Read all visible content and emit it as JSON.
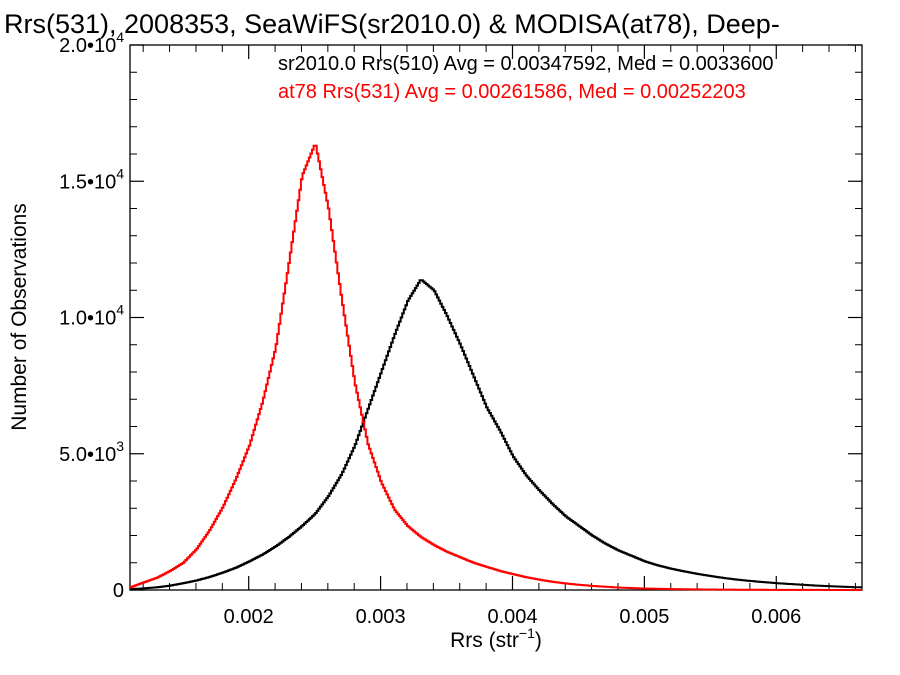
{
  "chart_data": {
    "type": "line",
    "title": "Rrs(531), 2008353, SeaWiFS(sr2010.0) & MODISA(at78), Deep-",
    "xlabel": "Rrs (str",
    "xlabel_sup": "−1",
    "xlabel_close": ")",
    "ylabel": "Number of Observations",
    "xlim": [
      0.0011,
      0.00665
    ],
    "ylim": [
      0,
      20000
    ],
    "grid": false,
    "x_ticks": [
      {
        "value": 0.002,
        "label": "0.002"
      },
      {
        "value": 0.003,
        "label": "0.003"
      },
      {
        "value": 0.004,
        "label": "0.004"
      },
      {
        "value": 0.005,
        "label": "0.005"
      },
      {
        "value": 0.006,
        "label": "0.006"
      }
    ],
    "y_ticks": [
      {
        "value": 0,
        "base": "0",
        "exp": ""
      },
      {
        "value": 5000,
        "base": "5.0•10",
        "exp": "3"
      },
      {
        "value": 10000,
        "base": "1.0•10",
        "exp": "4"
      },
      {
        "value": 15000,
        "base": "1.5•10",
        "exp": "4"
      },
      {
        "value": 20000,
        "base": "2.0•10",
        "exp": "4"
      }
    ],
    "legend": {
      "placement": "top-right",
      "entries": [
        {
          "text": "sr2010.0 Rrs(510) Avg = 0.00347592, Med = 0.0033600",
          "color": "#000000"
        },
        {
          "text": "at78 Rrs(531) Avg = 0.00261586, Med = 0.00252203",
          "color": "#ff0000"
        }
      ]
    },
    "series": [
      {
        "color": "#000000",
        "x": [
          0.0011,
          0.0012,
          0.0013,
          0.0014,
          0.0015,
          0.0016,
          0.0017,
          0.0018,
          0.0019,
          0.002,
          0.0021,
          0.0022,
          0.0023,
          0.0024,
          0.0025,
          0.0026,
          0.0027,
          0.0028,
          0.0029,
          0.003,
          0.0031,
          0.0032,
          0.0033,
          0.0034,
          0.0035,
          0.0036,
          0.0037,
          0.0038,
          0.0039,
          0.004,
          0.0041,
          0.0042,
          0.0043,
          0.0044,
          0.0045,
          0.0046,
          0.0047,
          0.0048,
          0.0049,
          0.005,
          0.0051,
          0.0052,
          0.0053,
          0.0054,
          0.0055,
          0.0056,
          0.0057,
          0.0058,
          0.0059,
          0.006,
          0.0061,
          0.0062,
          0.0063,
          0.0064,
          0.0065,
          0.0066
        ],
        "y": [
          30,
          60,
          100,
          160,
          250,
          350,
          480,
          640,
          820,
          1050,
          1300,
          1600,
          1950,
          2350,
          2800,
          3450,
          4250,
          5300,
          6650,
          8000,
          9350,
          10600,
          11400,
          11000,
          10050,
          9000,
          7850,
          6700,
          5850,
          4900,
          4200,
          3650,
          3150,
          2700,
          2350,
          2000,
          1700,
          1450,
          1250,
          1050,
          900,
          780,
          680,
          590,
          510,
          440,
          380,
          330,
          290,
          250,
          220,
          190,
          160,
          140,
          120,
          100
        ]
      },
      {
        "color": "#ff0000",
        "x": [
          0.0011,
          0.0012,
          0.0013,
          0.0014,
          0.0015,
          0.0016,
          0.0017,
          0.0018,
          0.0019,
          0.002,
          0.0021,
          0.0022,
          0.0023,
          0.0024,
          0.0025,
          0.0026,
          0.0027,
          0.0028,
          0.0029,
          0.003,
          0.0031,
          0.0032,
          0.0033,
          0.0034,
          0.0035,
          0.0036,
          0.0037,
          0.0038,
          0.0039,
          0.004,
          0.0041,
          0.0042,
          0.0043,
          0.0044,
          0.0045,
          0.0046,
          0.0047,
          0.0048,
          0.0049,
          0.005,
          0.0051,
          0.0052,
          0.0053,
          0.0054,
          0.0055,
          0.0056,
          0.0057,
          0.0058,
          0.0059,
          0.006,
          0.0061,
          0.0062,
          0.0063,
          0.0064,
          0.0065,
          0.0066
        ],
        "y": [
          100,
          280,
          450,
          700,
          1000,
          1500,
          2200,
          3050,
          4100,
          5300,
          6900,
          8900,
          12000,
          15200,
          16400,
          14000,
          10700,
          7600,
          5350,
          3950,
          2950,
          2350,
          1950,
          1650,
          1400,
          1200,
          1000,
          850,
          700,
          580,
          470,
          380,
          300,
          240,
          190,
          150,
          120,
          90,
          70,
          55,
          45,
          35,
          28,
          22,
          18,
          14,
          11,
          9,
          7,
          6,
          5,
          4,
          3,
          2,
          2,
          1
        ]
      }
    ]
  }
}
